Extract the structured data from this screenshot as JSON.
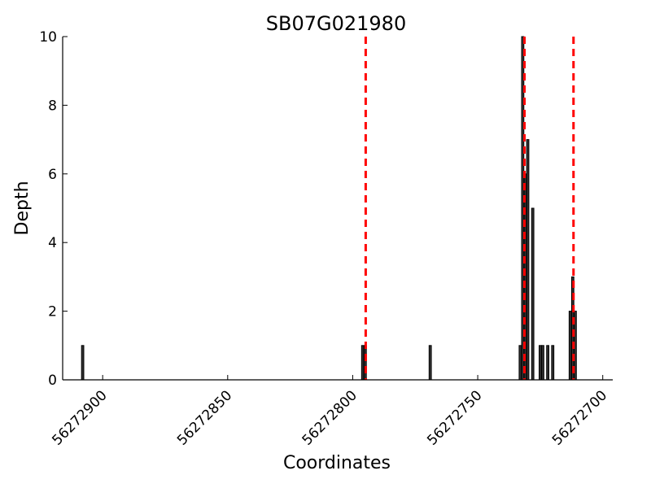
{
  "chart_data": {
    "type": "bar",
    "title": "SB07G021980",
    "xlabel": "Coordinates",
    "ylabel": "Depth",
    "x_reversed": true,
    "xlim": [
      56272916,
      56272696
    ],
    "ylim": [
      0,
      10
    ],
    "x_ticks": [
      56272900,
      56272850,
      56272800,
      56272750,
      56272700
    ],
    "x_tick_labels": [
      "56272900",
      "56272850",
      "56272800",
      "56272750",
      "56272700"
    ],
    "y_ticks": [
      0,
      2,
      4,
      6,
      8,
      10
    ],
    "y_tick_labels": [
      "0",
      "2",
      "4",
      "6",
      "8",
      "10"
    ],
    "grid": false,
    "bar_color": "#333333",
    "bars": [
      {
        "x": 56272908,
        "y": 1
      },
      {
        "x": 56272796,
        "y": 1
      },
      {
        "x": 56272795,
        "y": 1
      },
      {
        "x": 56272769,
        "y": 1
      },
      {
        "x": 56272733,
        "y": 1
      },
      {
        "x": 56272732,
        "y": 10
      },
      {
        "x": 56272731,
        "y": 6
      },
      {
        "x": 56272730,
        "y": 7
      },
      {
        "x": 56272728,
        "y": 5
      },
      {
        "x": 56272725,
        "y": 1
      },
      {
        "x": 56272724,
        "y": 1
      },
      {
        "x": 56272722,
        "y": 1
      },
      {
        "x": 56272720,
        "y": 1
      },
      {
        "x": 56272713,
        "y": 2
      },
      {
        "x": 56272712,
        "y": 3
      },
      {
        "x": 56272711,
        "y": 2
      }
    ],
    "vlines": [
      {
        "x": 56272794.8,
        "color": "#ff0000",
        "style": "dashed"
      },
      {
        "x": 56272731.3,
        "color": "#ff0000",
        "style": "dashed"
      },
      {
        "x": 56272711.7,
        "color": "#ff0000",
        "style": "dashed"
      }
    ]
  }
}
